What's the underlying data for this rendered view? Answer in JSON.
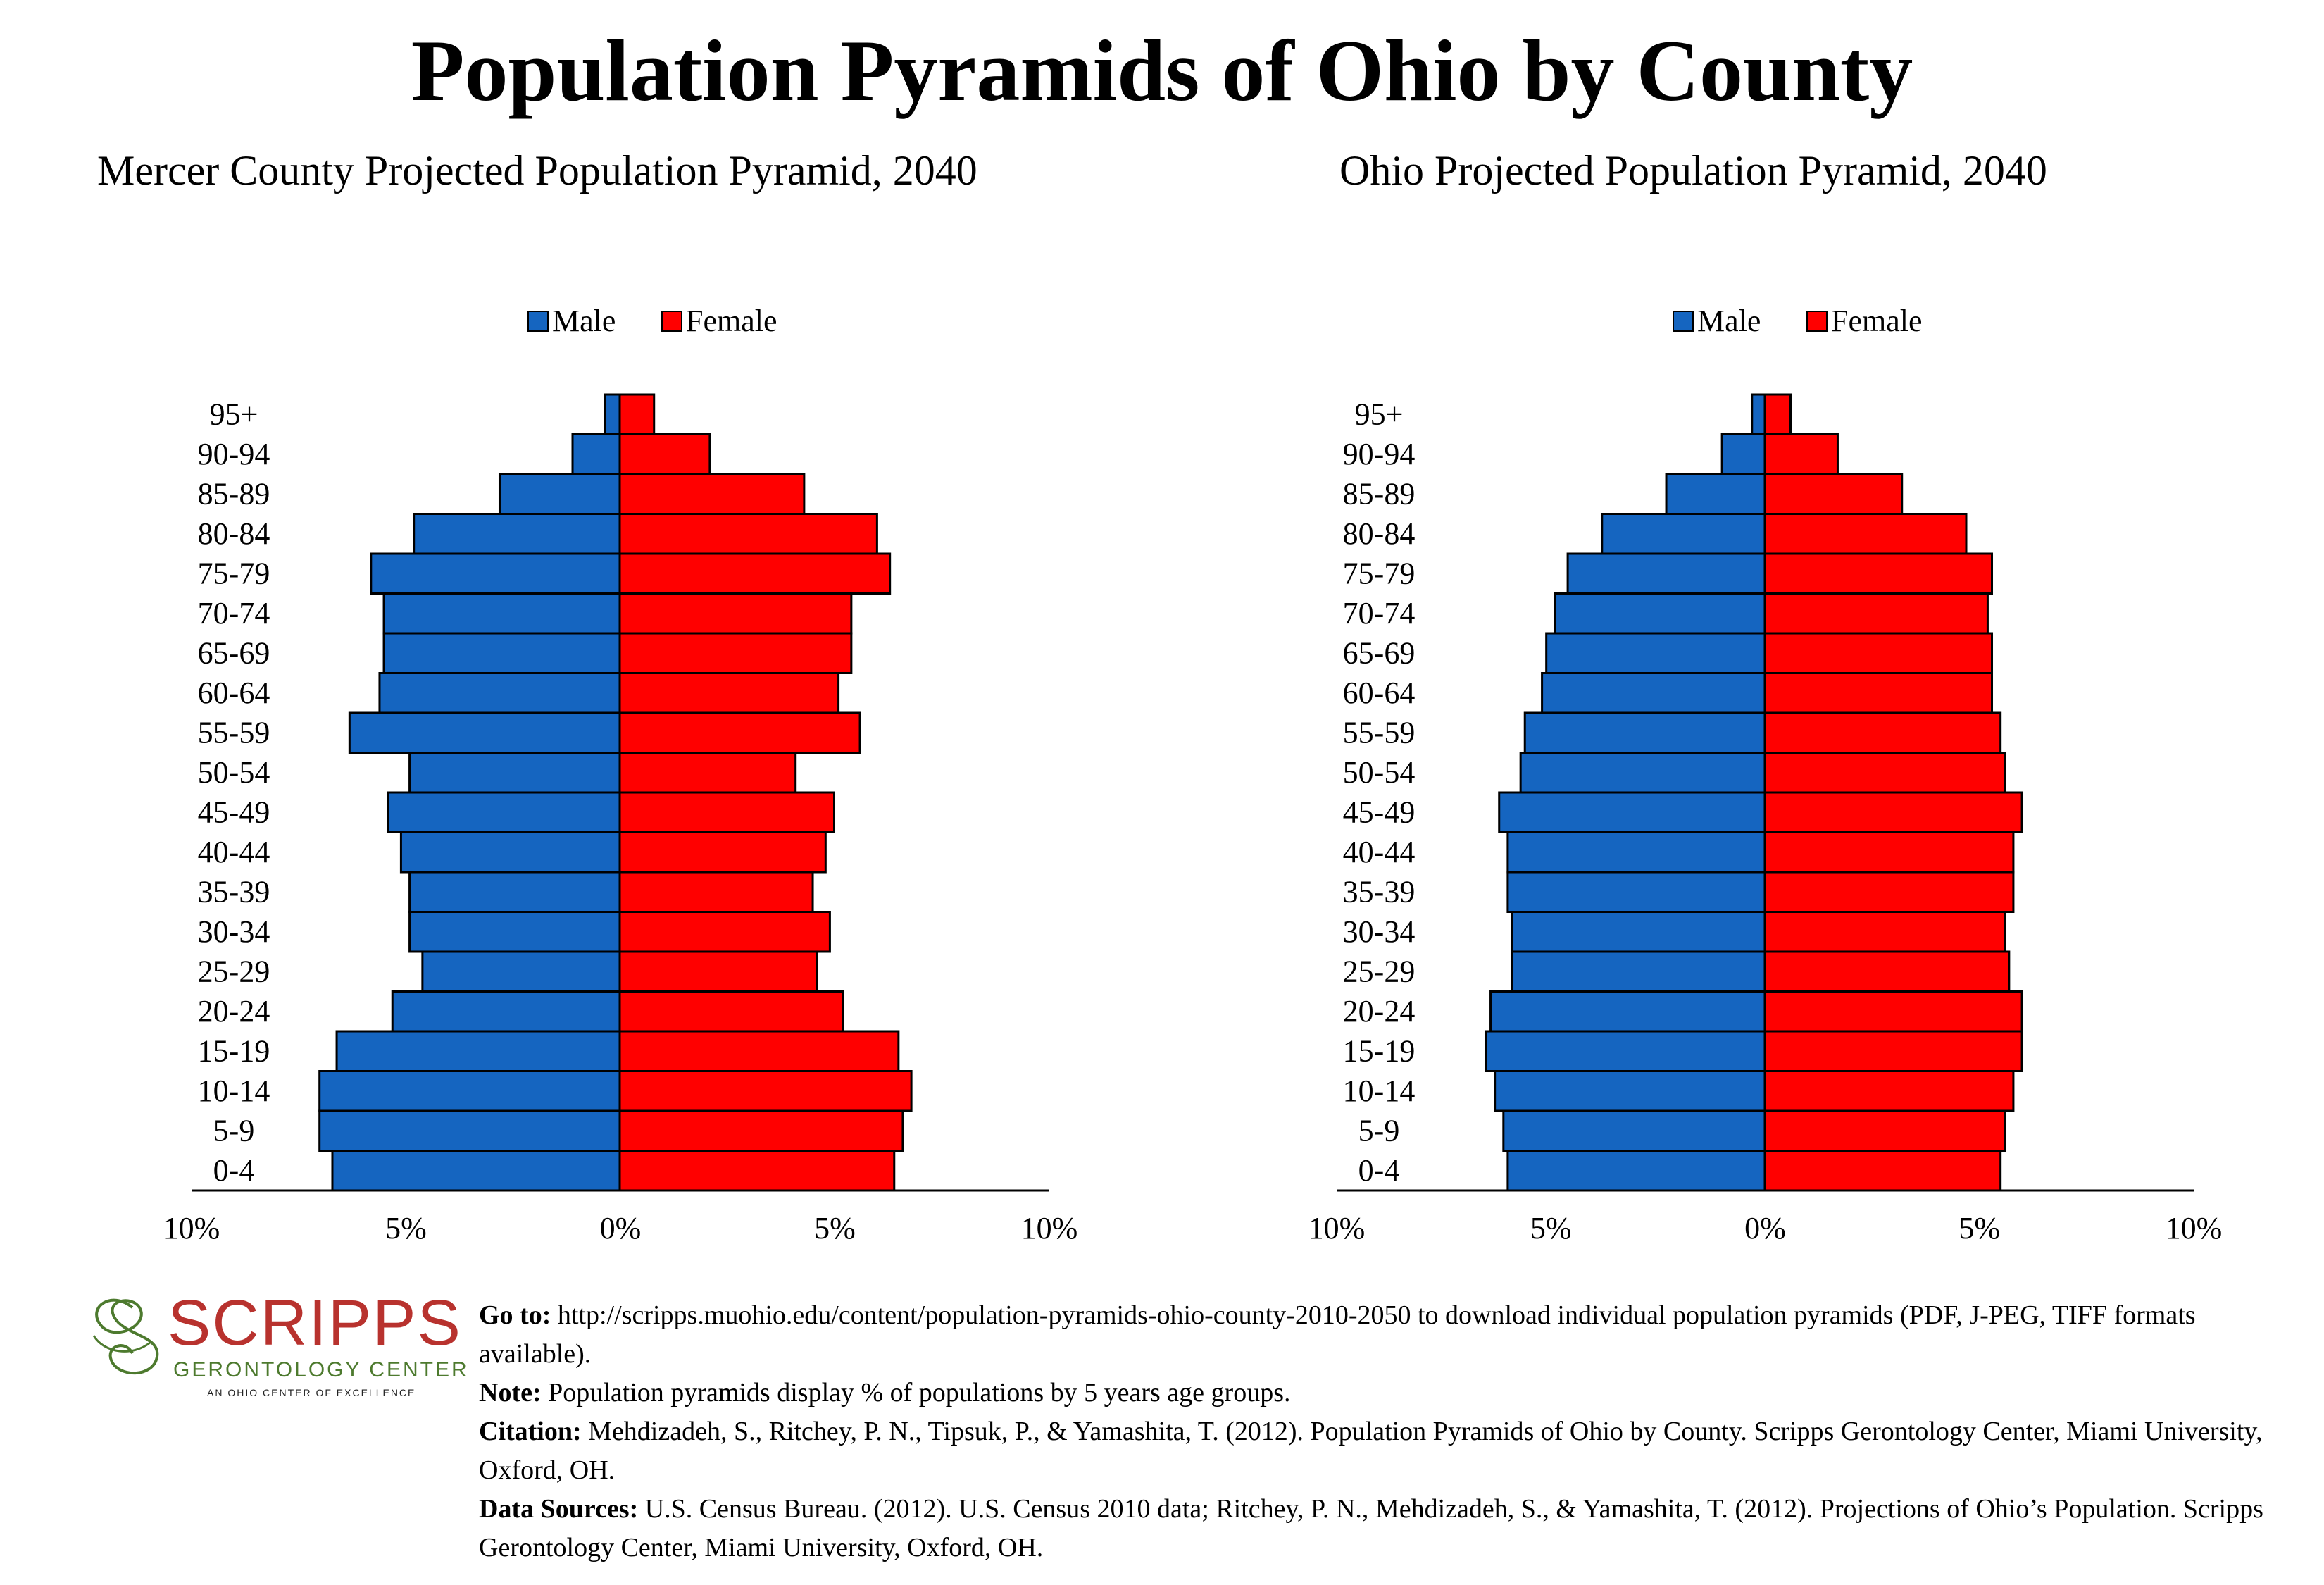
{
  "main_title": "Population Pyramids of Ohio by County",
  "colors": {
    "male": "#1565c0",
    "female": "#ff0000"
  },
  "chart_data": [
    {
      "type": "bar",
      "title": "Mercer County Projected Population Pyramid, 2040",
      "orientation": "horizontal",
      "legend": [
        "Male",
        "Female"
      ],
      "legend_position": "top",
      "categories": [
        "0-4",
        "5-9",
        "10-14",
        "15-19",
        "20-24",
        "25-29",
        "30-34",
        "35-39",
        "40-44",
        "45-49",
        "50-54",
        "55-59",
        "60-64",
        "65-69",
        "70-74",
        "75-79",
        "80-84",
        "85-89",
        "90-94",
        "95+"
      ],
      "series": [
        {
          "name": "Male",
          "values": [
            6.7,
            7.0,
            7.0,
            6.6,
            5.3,
            4.6,
            4.9,
            4.9,
            5.1,
            5.4,
            4.9,
            6.3,
            5.6,
            5.5,
            5.5,
            5.8,
            4.8,
            2.8,
            1.1,
            0.35
          ]
        },
        {
          "name": "Female",
          "values": [
            6.4,
            6.6,
            6.8,
            6.5,
            5.2,
            4.6,
            4.9,
            4.5,
            4.8,
            5.0,
            4.1,
            5.6,
            5.1,
            5.4,
            5.4,
            6.3,
            6.0,
            4.3,
            2.1,
            0.8
          ]
        }
      ],
      "xlim": [
        -10,
        10
      ],
      "xticks": [
        "10%",
        "5%",
        "0%",
        "5%",
        "10%"
      ]
    },
    {
      "type": "bar",
      "title": "Ohio Projected Population Pyramid, 2040",
      "orientation": "horizontal",
      "legend": [
        "Male",
        "Female"
      ],
      "legend_position": "top",
      "categories": [
        "0-4",
        "5-9",
        "10-14",
        "15-19",
        "20-24",
        "25-29",
        "30-34",
        "35-39",
        "40-44",
        "45-49",
        "50-54",
        "55-59",
        "60-64",
        "65-69",
        "70-74",
        "75-79",
        "80-84",
        "85-89",
        "90-94",
        "95+"
      ],
      "series": [
        {
          "name": "Male",
          "values": [
            6.0,
            6.1,
            6.3,
            6.5,
            6.4,
            5.9,
            5.9,
            6.0,
            6.0,
            6.2,
            5.7,
            5.6,
            5.2,
            5.1,
            4.9,
            4.6,
            3.8,
            2.3,
            1.0,
            0.3
          ]
        },
        {
          "name": "Female",
          "values": [
            5.5,
            5.6,
            5.8,
            6.0,
            6.0,
            5.7,
            5.6,
            5.8,
            5.8,
            6.0,
            5.6,
            5.5,
            5.3,
            5.3,
            5.2,
            5.3,
            4.7,
            3.2,
            1.7,
            0.6
          ]
        }
      ],
      "xlim": [
        -10,
        10
      ],
      "xticks": [
        "10%",
        "5%",
        "0%",
        "5%",
        "10%"
      ]
    }
  ],
  "logo": {
    "name": "SCRIPPS",
    "subtitle": "GERONTOLOGY CENTER",
    "tagline": "AN OHIO CENTER OF EXCELLENCE"
  },
  "footer": {
    "goto_label": "Go to:",
    "goto_text": "http://scripps.muohio.edu/content/population-pyramids-ohio-county-2010-2050 to download individual population pyramids (PDF, J-PEG, TIFF formats available).",
    "note_label": "Note:",
    "note_text": "Population pyramids display % of populations by 5 years age groups.",
    "citation_label": "Citation:",
    "citation_text": "Mehdizadeh, S., Ritchey, P. N., Tipsuk, P., & Yamashita, T. (2012). Population Pyramids of Ohio by County. Scripps Gerontology Center, Miami University, Oxford, OH.",
    "sources_label": "Data Sources:",
    "sources_text": "U.S. Census Bureau. (2012). U.S. Census 2010 data; Ritchey, P. N., Mehdizadeh, S., & Yamashita, T. (2012). Projections of Ohio’s Population. Scripps Gerontology Center, Miami University, Oxford, OH."
  }
}
